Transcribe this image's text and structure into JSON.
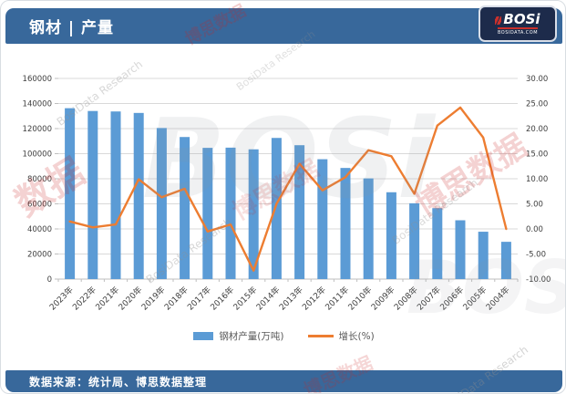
{
  "header": {
    "title": "钢材 | 产量",
    "logo": {
      "text": "BOSi",
      "subtext": "BOSIDATA.COM"
    }
  },
  "footer": {
    "source": "数据来源：统计局、博思数据整理"
  },
  "legend": [
    {
      "label": "钢材产量(万吨)",
      "color": "#5b9bd5",
      "type": "bar"
    },
    {
      "label": "增长(%)",
      "color": "#ed7d31",
      "type": "line"
    }
  ],
  "watermarks": {
    "brand_big": "BOSi",
    "brand_cn": "博思数据",
    "brand_cn_short": "数据",
    "brand_en": "BosiData Research"
  },
  "colors": {
    "header_bg": "#38689b",
    "bar": "#5b9bd5",
    "line": "#ed7d31",
    "gridline": "#d9d9d9",
    "axis_text": "#404040"
  },
  "chart_data": {
    "type": "bar+line",
    "title": "钢材 | 产量",
    "categories": [
      "2023年",
      "2022年",
      "2021年",
      "2020年",
      "2019年",
      "2018年",
      "2017年",
      "2016年",
      "2015年",
      "2014年",
      "2013年",
      "2012年",
      "2011年",
      "2010年",
      "2009年",
      "2008年",
      "2007年",
      "2006年",
      "2005年",
      "2004年"
    ],
    "series": [
      {
        "name": "钢材产量(万吨)",
        "type": "bar",
        "axis": "left",
        "color": "#5b9bd5",
        "values": [
          136268,
          134034,
          133667,
          132489,
          120477,
          113287,
          104642,
          104813,
          103468,
          112557,
          106762,
          95578,
          88620,
          80277,
          69244,
          60460,
          56561,
          46893,
          37771,
          29723
        ]
      },
      {
        "name": "增长(%)",
        "type": "line",
        "axis": "right",
        "color": "#ed7d31",
        "values": [
          1.5,
          0.3,
          0.9,
          9.9,
          6.3,
          8.0,
          -0.5,
          0.9,
          -8.3,
          5.0,
          13.0,
          7.7,
          10.3,
          15.7,
          14.5,
          7.0,
          20.6,
          24.2,
          18.2,
          0.0
        ]
      }
    ],
    "left_axis": {
      "min": 0,
      "max": 160000,
      "step": 20000,
      "labels": [
        "0",
        "20000",
        "40000",
        "60000",
        "80000",
        "100000",
        "120000",
        "140000",
        "160000"
      ]
    },
    "right_axis": {
      "min": -10,
      "max": 30,
      "step": 5,
      "labels": [
        "-10.00",
        "-5.00",
        "0.00",
        "5.00",
        "10.00",
        "15.00",
        "20.00",
        "25.00",
        "30.00"
      ]
    },
    "grid": true,
    "legend_position": "bottom"
  }
}
